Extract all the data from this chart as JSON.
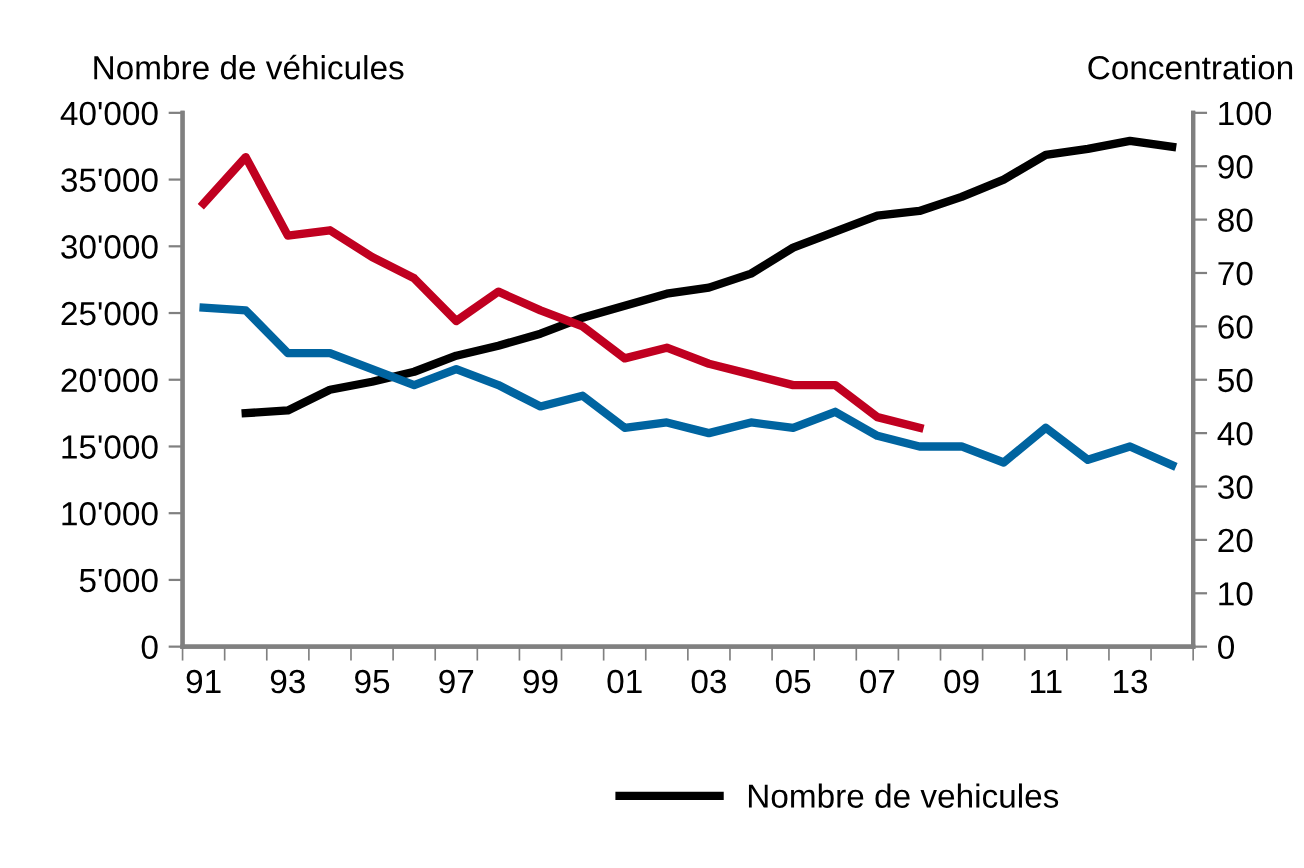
{
  "chart_data": {
    "type": "line",
    "ylabel": "Nombre de véhicules",
    "y2label": "Concentration",
    "categories": [
      "91",
      null,
      "93",
      null,
      "95",
      null,
      "97",
      null,
      "99",
      null,
      "01",
      null,
      "03",
      null,
      "05",
      null,
      "07",
      null,
      "09",
      null,
      "11",
      null,
      "13",
      null
    ],
    "ylim": [
      0,
      40000
    ],
    "yticks": [
      0,
      {
        "value": 5000,
        "label": "5'000"
      },
      {
        "value": 10000,
        "label": "10'000"
      },
      {
        "value": 15000,
        "label": "15'000"
      },
      {
        "value": 20000,
        "label": "20'000"
      },
      {
        "value": 25000,
        "label": "25'000"
      },
      {
        "value": 30000,
        "label": "30'000"
      },
      {
        "value": 35000,
        "label": "35'000"
      },
      {
        "value": 40000,
        "label": "40'000"
      }
    ],
    "y2lim": [
      0,
      100
    ],
    "y2ticks": [
      0,
      10,
      20,
      30,
      40,
      50,
      60,
      70,
      80,
      90,
      100
    ],
    "series": [
      {
        "name": "Nombre de vehicules",
        "color": "#000000",
        "values": [
          null,
          17500,
          17700,
          19250,
          19850,
          20600,
          21800,
          22550,
          23450,
          24650,
          25550,
          26450,
          26900,
          27950,
          29900,
          31100,
          32300,
          32650,
          33700,
          35000,
          36850,
          37300,
          37900,
          37450
        ]
      },
      {
        "color": "#c00020",
        "axis": "y2",
        "values": [
          83,
          91.7,
          77,
          78,
          73,
          69,
          61,
          66.5,
          63,
          60,
          54,
          56,
          53,
          51,
          49,
          49,
          43,
          41,
          null,
          null,
          null,
          null,
          null,
          null
        ]
      },
      {
        "color": "#0064a0",
        "axis": "y2",
        "values": [
          63.5,
          63,
          55,
          55,
          52,
          49,
          52,
          49,
          45,
          47,
          41,
          42,
          40,
          42,
          41,
          44,
          39.5,
          37.5,
          37.5,
          34.5,
          41,
          35,
          37.5,
          34
        ]
      }
    ],
    "grid": false,
    "legend": "bottom",
    "line_style": "solid",
    "marker": "none"
  }
}
